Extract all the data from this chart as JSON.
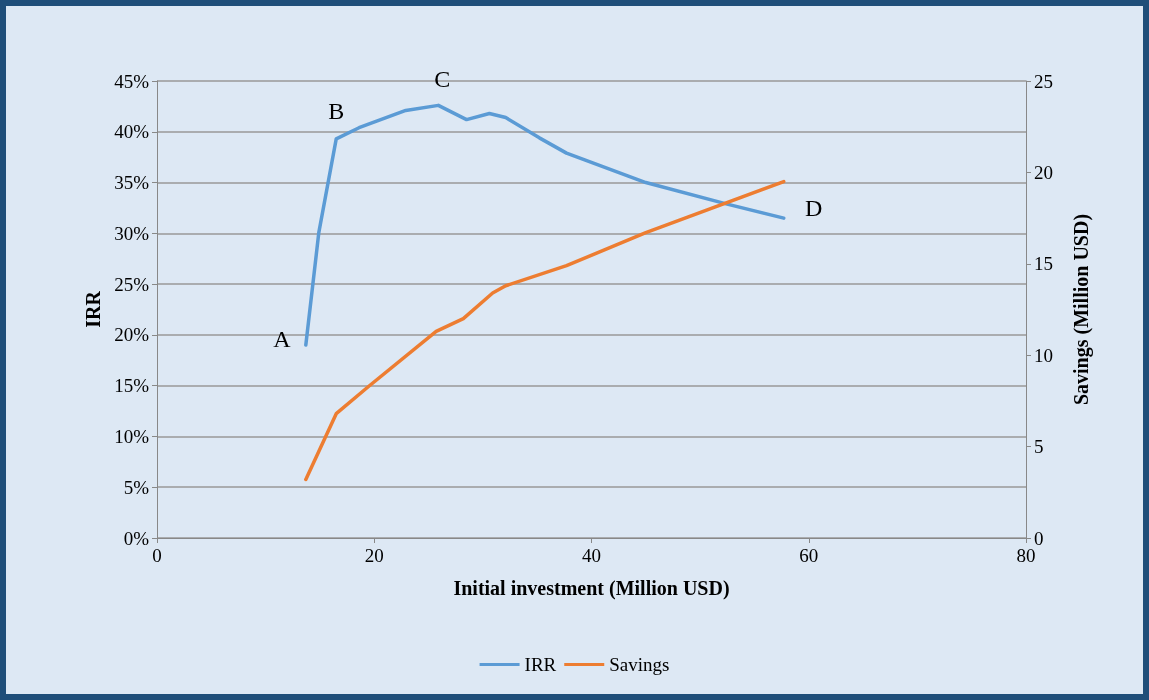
{
  "chart_data": {
    "type": "line",
    "xlabel": "Initial investment (Million USD)",
    "ylabel": "IRR",
    "y2label": "Savings (Million USD)",
    "xlim": [
      0,
      80
    ],
    "xticks": [
      0,
      20,
      40,
      60,
      80
    ],
    "ylim": [
      0,
      45
    ],
    "yticks": [
      {
        "value": 0,
        "label": "0%"
      },
      {
        "value": 5,
        "label": "5%"
      },
      {
        "value": 10,
        "label": "10%"
      },
      {
        "value": 15,
        "label": "15%"
      },
      {
        "value": 20,
        "label": "20%"
      },
      {
        "value": 25,
        "label": "25%"
      },
      {
        "value": 30,
        "label": "30%"
      },
      {
        "value": 35,
        "label": "35%"
      },
      {
        "value": 40,
        "label": "40%"
      },
      {
        "value": 45,
        "label": "45%"
      }
    ],
    "y2lim": [
      0,
      25
    ],
    "y2ticks": [
      0,
      5,
      10,
      15,
      20,
      25
    ],
    "grid": "y",
    "legend": "bottom",
    "marker": "none",
    "line_style": "solid",
    "series": [
      {
        "name": "IRR",
        "color": "#5b9bd5",
        "x": [
          13.7,
          14.9,
          16.5,
          18.6,
          22.9,
          25.9,
          28.5,
          30.6,
          32.1,
          35.2,
          37.7,
          45.0,
          52.4,
          57.7
        ],
        "values": [
          19.0,
          30.1,
          39.3,
          40.4,
          42.1,
          42.6,
          41.2,
          41.8,
          41.4,
          39.4,
          37.9,
          35.0,
          32.9,
          31.5
        ]
      },
      {
        "name": "Savings",
        "color": "#ed7d31",
        "axis": "y2",
        "x": [
          13.7,
          16.5,
          19.5,
          25.7,
          28.2,
          30.9,
          32.1,
          37.7,
          45.0,
          57.7
        ],
        "values": [
          3.2,
          6.8,
          8.3,
          11.3,
          12.0,
          13.4,
          13.8,
          14.9,
          16.7,
          19.5
        ]
      }
    ],
    "annotations": [
      {
        "text": "A",
        "x": 13.7,
        "y": 19.0
      },
      {
        "text": "B",
        "x": 16.5,
        "y": 39.3
      },
      {
        "text": "C",
        "x": 25.9,
        "y": 42.6
      },
      {
        "text": "D",
        "x": 57.7,
        "y": 31.5
      }
    ]
  }
}
